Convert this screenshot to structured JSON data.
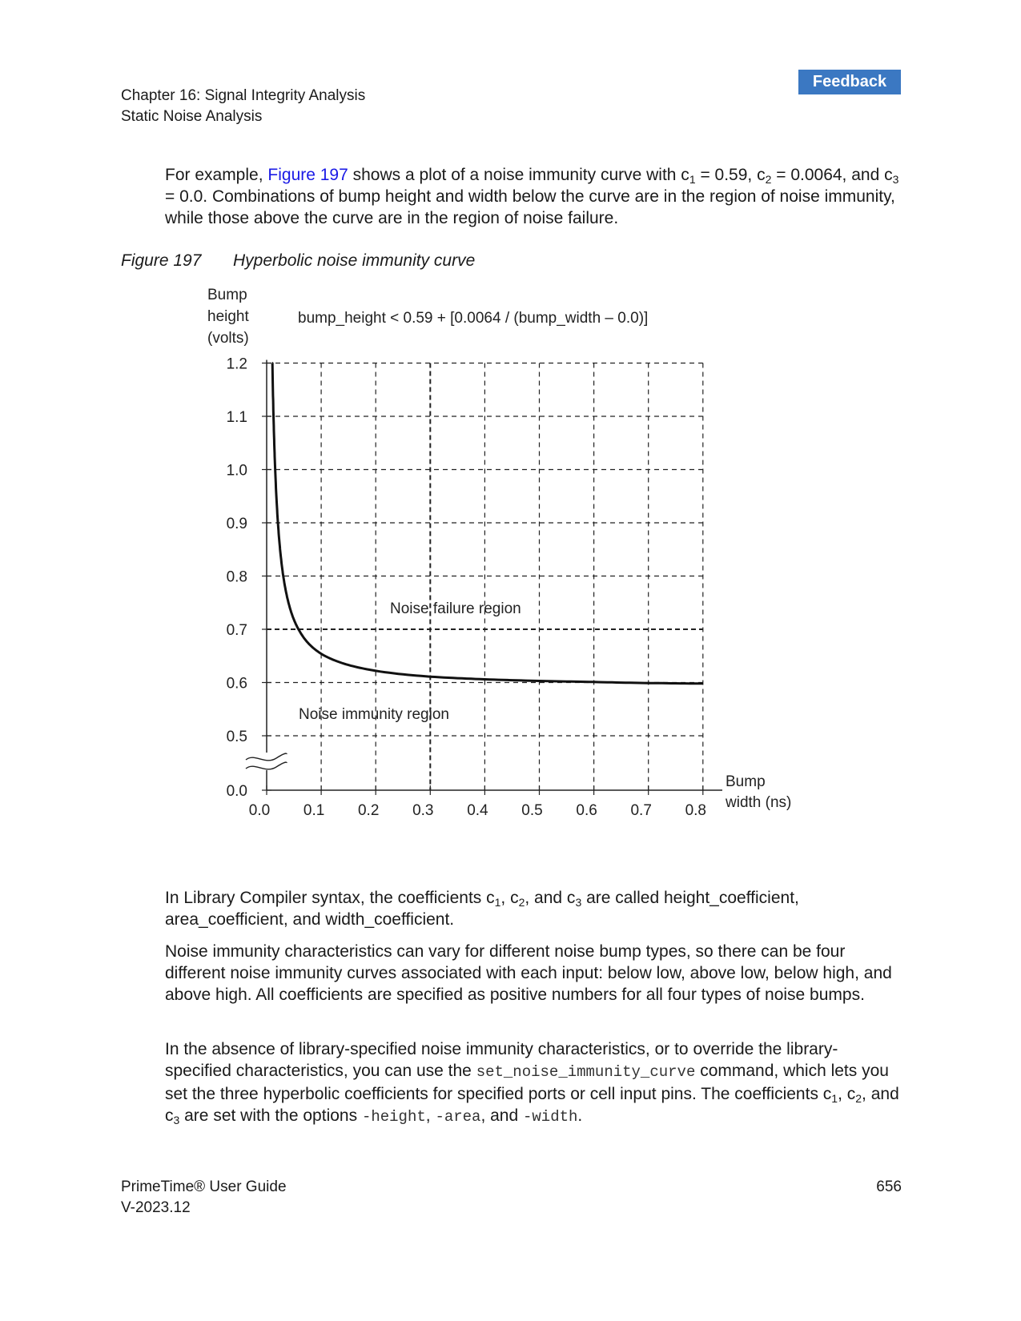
{
  "feedback_label": "Feedback",
  "header": {
    "chapter": "Chapter 16: Signal Integrity Analysis",
    "section": "Static Noise Analysis"
  },
  "intro": {
    "t1": "For example, ",
    "link": "Figure 197",
    "t2": " shows a plot of a noise immunity curve with c",
    "s1": "1",
    "t3": " = 0.59, c",
    "s2": "2",
    "t4": " = 0.0064, and c",
    "s3": "3",
    "t5": " = 0.0. Combinations of bump height and width below the curve are in the region of noise immunity, while those above the curve are in the region of noise failure."
  },
  "figure": {
    "number": "Figure 197",
    "title": "Hyperbolic noise immunity curve"
  },
  "chart_data": {
    "type": "line",
    "equation": "bump_height < 0.59 + [0.0064 / (bump_width – 0.0)]",
    "ylabel_lines": [
      "Bump",
      "height",
      "(volts)"
    ],
    "xlabel_lines": [
      "Bump",
      "width (ns)"
    ],
    "x_ticks": [
      "0.0",
      "0.1",
      "0.2",
      "0.3",
      "0.4",
      "0.5",
      "0.6",
      "0.7",
      "0.8"
    ],
    "y_ticks": [
      "0.0",
      "0.5",
      "0.6",
      "0.7",
      "0.8",
      "0.9",
      "1.0",
      "1.1",
      "1.2"
    ],
    "xlim": [
      0.0,
      0.8
    ],
    "ylim": [
      0.0,
      1.2
    ],
    "y_axis_break": "between 0.0 and 0.5",
    "grid": true,
    "series": [
      {
        "x": [
          0.01,
          0.012,
          0.015,
          0.02,
          0.025,
          0.03,
          0.04,
          0.05,
          0.06,
          0.08,
          0.1,
          0.15,
          0.2,
          0.3,
          0.4,
          0.5,
          0.6,
          0.7,
          0.8
        ],
        "y": [
          1.23,
          1.123,
          1.017,
          0.91,
          0.846,
          0.803,
          0.75,
          0.718,
          0.697,
          0.67,
          0.654,
          0.633,
          0.622,
          0.611,
          0.606,
          0.603,
          0.601,
          0.599,
          0.598
        ]
      }
    ],
    "annotations": [
      "Noise failure region",
      "Noise immunity region"
    ]
  },
  "para2": {
    "t1": "In Library Compiler syntax, the coefficients c",
    "s1": "1",
    "t2": ", c",
    "s2": "2",
    "t3": ", and c",
    "s3": "3",
    "t4": " are called height_coefficient, area_coefficient, and width_coefficient."
  },
  "para3": "Noise immunity characteristics can vary for different noise bump types, so there can be four different noise immunity curves associated with each input: below low, above low, below high, and above high. All coefficients are specified as positive numbers for all four types of noise bumps.",
  "para4": {
    "t1": "In the absence of library-specified noise immunity characteristics, or to override the library-specified characteristics, you can use the ",
    "code1": "set_noise_immunity_curve",
    "t2": " command, which lets you set the three hyperbolic coefficients for specified ports or cell input pins. The coefficients c",
    "s1": "1",
    "t3": ", c",
    "s2": "2",
    "t4": ", and c",
    "s3": "3",
    "t5": " are set with the options ",
    "code2": "-height",
    "t6": ", ",
    "code3": "-area",
    "t7": ", and ",
    "code4": "-width",
    "t8": "."
  },
  "footer": {
    "title": "PrimeTime® User Guide",
    "version": "V-2023.12",
    "page": "656"
  }
}
